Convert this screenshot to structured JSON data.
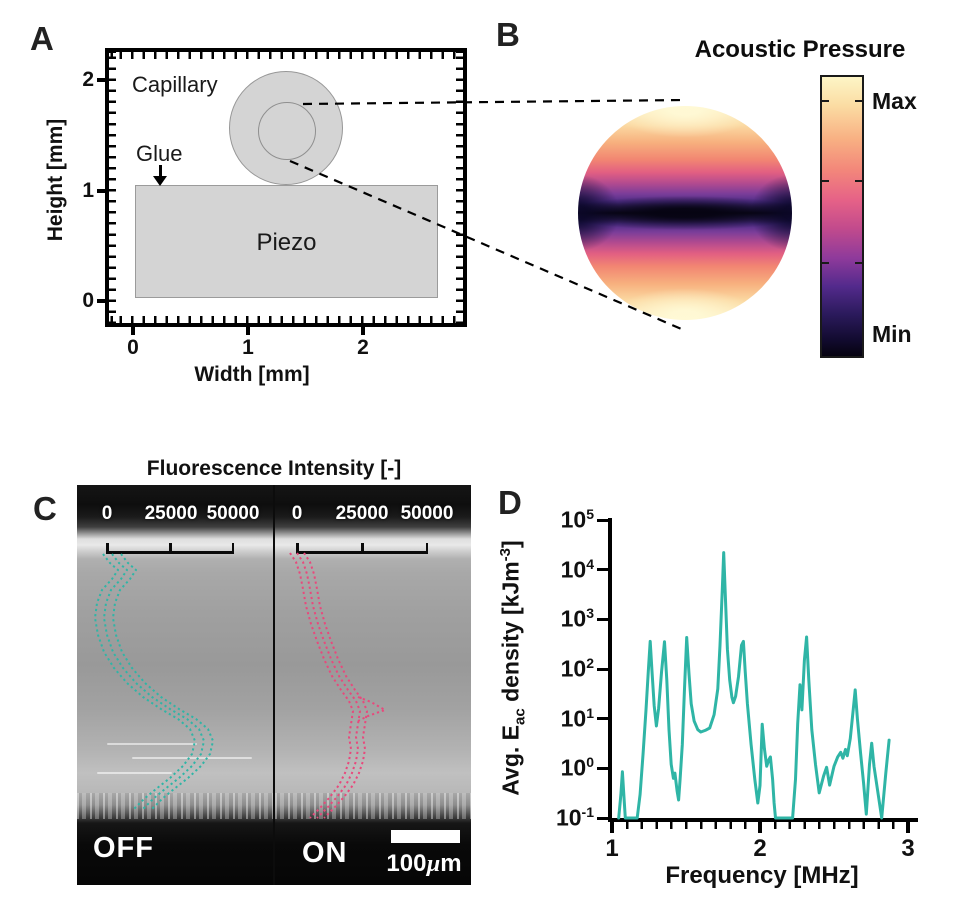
{
  "figure": {
    "panel_labels": {
      "a": "A",
      "b": "B",
      "c": "C",
      "d": "D"
    }
  },
  "colors": {
    "teal": "#2fb5a6",
    "pink": "#e8497c",
    "schematic_gray": "#d4d4d4"
  },
  "panels": {
    "a": {
      "xlabel": "Width [mm]",
      "ylabel": "Height [mm]",
      "xticks": [
        "0",
        "1",
        "2"
      ],
      "yticks": [
        "2",
        "1",
        "0"
      ],
      "annotations": {
        "capillary": "Capillary",
        "glue": "Glue",
        "piezo": "Piezo"
      },
      "geometry_mm": {
        "piezo_x": [
          0,
          2.65
        ],
        "piezo_y": [
          0,
          1.05
        ],
        "capillary_outer_center": [
          1.33,
          1.57
        ],
        "capillary_outer_radius": 0.52,
        "capillary_inner_radius": 0.26
      }
    },
    "b": {
      "title": "Acoustic Pressure",
      "colorbar_max": "Max",
      "colorbar_min": "Min"
    },
    "c": {
      "title": "Fluorescence Intensity [-]",
      "intensity_ticks": [
        "0",
        "25000",
        "50000"
      ],
      "off_label": "OFF",
      "on_label": "ON",
      "scalebar": {
        "pre": "100",
        "mu": "µ",
        "post": "m"
      },
      "curves": {
        "off": {
          "name": "interface profile (ultrasound off), mean ± sd",
          "color": "#2fb5a6",
          "offsets": [
            -9,
            0,
            9
          ],
          "points": [
            [
              112,
              554
            ],
            [
              119,
              563
            ],
            [
              127,
              570
            ],
            [
              121,
              579
            ],
            [
              111,
              590
            ],
            [
              106,
              603
            ],
            [
              104,
              618
            ],
            [
              107,
              635
            ],
            [
              113,
              652
            ],
            [
              123,
              668
            ],
            [
              136,
              683
            ],
            [
              152,
              697
            ],
            [
              170,
              709
            ],
            [
              187,
              719
            ],
            [
              199,
              729
            ],
            [
              204,
              741
            ],
            [
              201,
              754
            ],
            [
              192,
              766
            ],
            [
              179,
              778
            ],
            [
              165,
              789
            ],
            [
              153,
              799
            ],
            [
              143,
              809
            ]
          ]
        },
        "on": {
          "name": "interface profile (ultrasound on), mean ± sd",
          "color": "#e8497c",
          "offsets": [
            -7,
            0,
            7
          ],
          "points": [
            [
              297,
              553
            ],
            [
              303,
              562
            ],
            [
              307,
              574
            ],
            [
              310,
              589
            ],
            [
              313,
              606
            ],
            [
              318,
              624
            ],
            [
              324,
              641
            ],
            [
              331,
              659
            ],
            [
              339,
              676
            ],
            [
              348,
              690
            ],
            [
              356,
              701
            ],
            [
              360,
              711
            ],
            [
              358,
              724
            ],
            [
              356,
              737
            ],
            [
              358,
              749
            ],
            [
              356,
              761
            ],
            [
              352,
              773
            ],
            [
              346,
              785
            ],
            [
              337,
              797
            ],
            [
              327,
              808
            ],
            [
              317,
              818
            ]
          ],
          "spike": [
            [
              358,
              697
            ],
            [
              371,
              702
            ],
            [
              385,
              710
            ],
            [
              368,
              716
            ],
            [
              358,
              721
            ]
          ]
        }
      }
    },
    "d": {
      "ylabel_parts": {
        "pre": "Avg. E",
        "sub": "ac",
        "mid": " density [kJm",
        "sup": "-3",
        "post": "]"
      },
      "ytick_base": "10",
      "ytick_exponents": [
        "5",
        "4",
        "3",
        "2",
        "1",
        "0",
        "-1"
      ],
      "xticks": [
        "1",
        "2",
        "3"
      ],
      "xlabel": "Frequency [MHz]"
    }
  },
  "chart_data": {
    "type": "line",
    "panel": "D",
    "title": "",
    "xlabel": "Frequency [MHz]",
    "ylabel": "Avg. E_ac density [kJm^-3]",
    "x_range_mhz": [
      1,
      3
    ],
    "y_scale": "log10",
    "y_log_range": [
      -1,
      5
    ],
    "grid": false,
    "legend": "none",
    "series": [
      {
        "name": "Average acoustic energy density",
        "color": "#2fb5a6",
        "points": [
          [
            1.045,
            0.1
          ],
          [
            1.06,
            0.3
          ],
          [
            1.07,
            0.85
          ],
          [
            1.08,
            0.3
          ],
          [
            1.09,
            0.1
          ],
          [
            1.17,
            0.1
          ],
          [
            1.19,
            0.3
          ],
          [
            1.21,
            2
          ],
          [
            1.23,
            15
          ],
          [
            1.245,
            90
          ],
          [
            1.258,
            360
          ],
          [
            1.27,
            90
          ],
          [
            1.285,
            18
          ],
          [
            1.3,
            7.1
          ],
          [
            1.315,
            16
          ],
          [
            1.335,
            90
          ],
          [
            1.355,
            355
          ],
          [
            1.37,
            60
          ],
          [
            1.385,
            6
          ],
          [
            1.4,
            1.2
          ],
          [
            1.415,
            0.63
          ],
          [
            1.425,
            0.8
          ],
          [
            1.44,
            0.35
          ],
          [
            1.45,
            0.23
          ],
          [
            1.46,
            0.6
          ],
          [
            1.475,
            3
          ],
          [
            1.49,
            40
          ],
          [
            1.505,
            430
          ],
          [
            1.52,
            80
          ],
          [
            1.535,
            20
          ],
          [
            1.555,
            9
          ],
          [
            1.58,
            6
          ],
          [
            1.6,
            5.4
          ],
          [
            1.63,
            5.8
          ],
          [
            1.66,
            6.5
          ],
          [
            1.69,
            12
          ],
          [
            1.715,
            40
          ],
          [
            1.73,
            300
          ],
          [
            1.745,
            4000
          ],
          [
            1.755,
            22000
          ],
          [
            1.765,
            3500
          ],
          [
            1.78,
            250
          ],
          [
            1.795,
            60
          ],
          [
            1.81,
            27
          ],
          [
            1.82,
            21
          ],
          [
            1.835,
            28
          ],
          [
            1.855,
            70
          ],
          [
            1.875,
            300
          ],
          [
            1.888,
            360
          ],
          [
            1.9,
            90
          ],
          [
            1.915,
            20
          ],
          [
            1.94,
            3
          ],
          [
            1.965,
            0.6
          ],
          [
            1.985,
            0.2
          ],
          [
            2.0,
            0.45
          ],
          [
            2.015,
            7.7
          ],
          [
            2.03,
            2.5
          ],
          [
            2.045,
            1.1
          ],
          [
            2.06,
            1.5
          ],
          [
            2.07,
            1.7
          ],
          [
            2.085,
            0.6
          ],
          [
            2.095,
            0.2
          ],
          [
            2.105,
            0.1
          ],
          [
            2.22,
            0.1
          ],
          [
            2.24,
            0.6
          ],
          [
            2.255,
            8
          ],
          [
            2.27,
            48
          ],
          [
            2.283,
            15
          ],
          [
            2.3,
            150
          ],
          [
            2.315,
            440
          ],
          [
            2.33,
            60
          ],
          [
            2.35,
            6
          ],
          [
            2.375,
            1.2
          ],
          [
            2.4,
            0.32
          ],
          [
            2.43,
            0.7
          ],
          [
            2.45,
            1.05
          ],
          [
            2.47,
            0.46
          ],
          [
            2.5,
            1.1
          ],
          [
            2.525,
            1.7
          ],
          [
            2.545,
            2.1
          ],
          [
            2.56,
            1.6
          ],
          [
            2.578,
            2.4
          ],
          [
            2.59,
            1.8
          ],
          [
            2.61,
            4
          ],
          [
            2.63,
            15
          ],
          [
            2.643,
            38
          ],
          [
            2.658,
            10
          ],
          [
            2.68,
            2
          ],
          [
            2.7,
            0.5
          ],
          [
            2.718,
            0.12
          ],
          [
            2.74,
            1.2
          ],
          [
            2.755,
            3.2
          ],
          [
            2.77,
            1.1
          ],
          [
            2.8,
            0.28
          ],
          [
            2.822,
            0.1
          ],
          [
            2.85,
            0.8
          ],
          [
            2.872,
            3.7
          ]
        ]
      }
    ]
  }
}
